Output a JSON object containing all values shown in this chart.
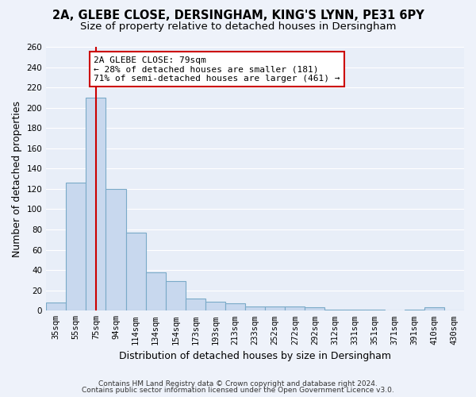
{
  "title1": "2A, GLEBE CLOSE, DERSINGHAM, KING'S LYNN, PE31 6PY",
  "title2": "Size of property relative to detached houses in Dersingham",
  "xlabel": "Distribution of detached houses by size in Dersingham",
  "ylabel": "Number of detached properties",
  "bar_color": "#c8d8ee",
  "bar_edge_color": "#7aaac8",
  "background_color": "#e8eef8",
  "grid_color": "#ffffff",
  "red_line_color": "#cc0000",
  "categories": [
    "35sqm",
    "55sqm",
    "75sqm",
    "94sqm",
    "114sqm",
    "134sqm",
    "154sqm",
    "173sqm",
    "193sqm",
    "213sqm",
    "233sqm",
    "252sqm",
    "272sqm",
    "292sqm",
    "312sqm",
    "331sqm",
    "351sqm",
    "371sqm",
    "391sqm",
    "410sqm",
    "430sqm"
  ],
  "values": [
    8,
    126,
    210,
    120,
    77,
    38,
    29,
    12,
    9,
    7,
    4,
    4,
    4,
    3,
    1,
    1,
    1,
    0,
    1,
    3,
    0
  ],
  "red_line_x": 2,
  "annotation_text": "2A GLEBE CLOSE: 79sqm\n← 28% of detached houses are smaller (181)\n71% of semi-detached houses are larger (461) →",
  "annotation_box_color": "#ffffff",
  "annotation_border_color": "#cc0000",
  "ylim": [
    0,
    260
  ],
  "yticks": [
    0,
    20,
    40,
    60,
    80,
    100,
    120,
    140,
    160,
    180,
    200,
    220,
    240,
    260
  ],
  "footer1": "Contains HM Land Registry data © Crown copyright and database right 2024.",
  "footer2": "Contains public sector information licensed under the Open Government Licence v3.0.",
  "title_fontsize": 10.5,
  "subtitle_fontsize": 9.5,
  "tick_fontsize": 7.5,
  "ylabel_fontsize": 9,
  "xlabel_fontsize": 9
}
